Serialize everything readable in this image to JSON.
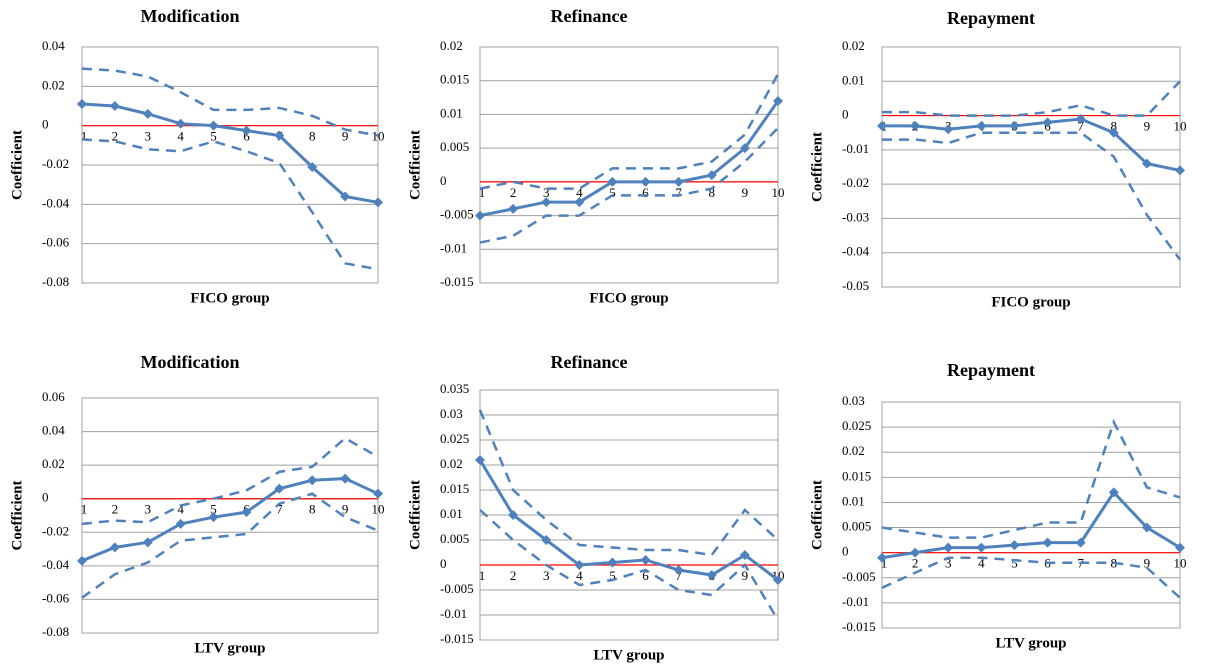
{
  "chart_data": [
    {
      "type": "line",
      "title": "Modification",
      "x_label": "FICO group",
      "y_label": "Coefficient",
      "categories": [
        1,
        2,
        3,
        4,
        5,
        6,
        7,
        8,
        9,
        10
      ],
      "ylim": [
        -0.08,
        0.04
      ],
      "yticks": [
        -0.08,
        -0.06,
        -0.04,
        -0.02,
        0,
        0.02,
        0.04
      ],
      "grid": true,
      "zero_line_color": "#ff0000",
      "series": [
        {
          "color": "#4f81bd",
          "marker": "diamond",
          "dash": false,
          "values": [
            0.011,
            0.01,
            0.006,
            0.001,
            0,
            -0.0025,
            -0.005,
            -0.021,
            -0.036,
            -0.039
          ]
        },
        {
          "color": "#4f81bd",
          "marker": "none",
          "dash": true,
          "values": [
            0.029,
            0.028,
            0.025,
            0.017,
            0.008,
            0.008,
            0.009,
            0.005,
            -0.002,
            -0.005
          ]
        },
        {
          "color": "#4f81bd",
          "marker": "none",
          "dash": true,
          "values": [
            -0.007,
            -0.008,
            -0.012,
            -0.013,
            -0.008,
            -0.013,
            -0.019,
            -0.044,
            -0.07,
            -0.073
          ]
        }
      ]
    },
    {
      "type": "line",
      "title": "Refinance",
      "x_label": "FICO group",
      "y_label": "Coefficient",
      "categories": [
        1,
        2,
        3,
        4,
        5,
        6,
        7,
        8,
        9,
        10
      ],
      "ylim": [
        -0.015,
        0.02
      ],
      "yticks": [
        -0.015,
        -0.01,
        -0.005,
        0,
        0.005,
        0.01,
        0.015,
        0.02
      ],
      "grid": true,
      "zero_line_color": "#ff0000",
      "series": [
        {
          "color": "#4f81bd",
          "marker": "diamond",
          "dash": false,
          "values": [
            -0.005,
            -0.004,
            -0.003,
            -0.003,
            0,
            0,
            0,
            0.001,
            0.005,
            0.012
          ]
        },
        {
          "color": "#4f81bd",
          "marker": "none",
          "dash": true,
          "values": [
            -0.001,
            0,
            -0.001,
            -0.001,
            0.002,
            0.002,
            0.002,
            0.003,
            0.007,
            0.016
          ]
        },
        {
          "color": "#4f81bd",
          "marker": "none",
          "dash": true,
          "values": [
            -0.009,
            -0.008,
            -0.005,
            -0.005,
            -0.002,
            -0.002,
            -0.002,
            -0.001,
            0.003,
            0.008
          ]
        }
      ]
    },
    {
      "type": "line",
      "title": "Repayment",
      "x_label": "FICO group",
      "y_label": "Coefficient",
      "categories": [
        1,
        2,
        3,
        4,
        5,
        6,
        7,
        8,
        9,
        10
      ],
      "ylim": [
        -0.05,
        0.02
      ],
      "yticks": [
        -0.05,
        -0.04,
        -0.03,
        -0.02,
        -0.01,
        0,
        0.01,
        0.02
      ],
      "grid": true,
      "zero_line_color": "#ff0000",
      "series": [
        {
          "color": "#4f81bd",
          "marker": "diamond",
          "dash": false,
          "values": [
            -0.003,
            -0.003,
            -0.004,
            -0.003,
            -0.003,
            -0.002,
            -0.001,
            -0.005,
            -0.014,
            -0.016
          ]
        },
        {
          "color": "#4f81bd",
          "marker": "none",
          "dash": true,
          "values": [
            0.001,
            0.001,
            0,
            0,
            0,
            0.001,
            0.003,
            0,
            0,
            0.01
          ]
        },
        {
          "color": "#4f81bd",
          "marker": "none",
          "dash": true,
          "values": [
            -0.007,
            -0.007,
            -0.008,
            -0.005,
            -0.005,
            -0.005,
            -0.005,
            -0.012,
            -0.029,
            -0.042
          ]
        }
      ]
    },
    {
      "type": "line",
      "title": "Modification",
      "x_label": "LTV group",
      "y_label": "Coefficient",
      "categories": [
        1,
        2,
        3,
        4,
        5,
        6,
        7,
        8,
        9,
        10
      ],
      "ylim": [
        -0.08,
        0.06
      ],
      "yticks": [
        -0.08,
        -0.06,
        -0.04,
        -0.02,
        0,
        0.02,
        0.04,
        0.06
      ],
      "grid": true,
      "zero_line_color": "#ff0000",
      "series": [
        {
          "color": "#4f81bd",
          "marker": "diamond",
          "dash": false,
          "values": [
            -0.037,
            -0.029,
            -0.026,
            -0.015,
            -0.011,
            -0.008,
            0.006,
            0.011,
            0.012,
            0.003
          ]
        },
        {
          "color": "#4f81bd",
          "marker": "none",
          "dash": true,
          "values": [
            -0.015,
            -0.013,
            -0.014,
            -0.004,
            0,
            0.005,
            0.016,
            0.019,
            0.036,
            0.025
          ]
        },
        {
          "color": "#4f81bd",
          "marker": "none",
          "dash": true,
          "values": [
            -0.059,
            -0.045,
            -0.038,
            -0.025,
            -0.023,
            -0.021,
            -0.003,
            0.003,
            -0.011,
            -0.019
          ]
        }
      ]
    },
    {
      "type": "line",
      "title": "Refinance",
      "x_label": "LTV group",
      "y_label": "Coefficient",
      "categories": [
        1,
        2,
        3,
        4,
        5,
        6,
        7,
        8,
        9,
        10
      ],
      "ylim": [
        -0.015,
        0.035
      ],
      "yticks": [
        -0.015,
        -0.01,
        -0.005,
        0,
        0.005,
        0.01,
        0.015,
        0.02,
        0.025,
        0.03,
        0.035
      ],
      "grid": true,
      "zero_line_color": "#ff0000",
      "series": [
        {
          "color": "#4f81bd",
          "marker": "diamond",
          "dash": false,
          "values": [
            0.021,
            0.01,
            0.005,
            0,
            0.0005,
            0.001,
            -0.001,
            -0.002,
            0.002,
            -0.003
          ]
        },
        {
          "color": "#4f81bd",
          "marker": "none",
          "dash": true,
          "values": [
            0.031,
            0.015,
            0.009,
            0.004,
            0.0035,
            0.003,
            0.003,
            0.002,
            0.011,
            0.005
          ]
        },
        {
          "color": "#4f81bd",
          "marker": "none",
          "dash": true,
          "values": [
            0.011,
            0.005,
            0,
            -0.004,
            -0.003,
            -0.001,
            -0.005,
            -0.006,
            0,
            -0.011
          ]
        }
      ]
    },
    {
      "type": "line",
      "title": "Repayment",
      "x_label": "LTV group",
      "y_label": "Coefficient",
      "categories": [
        1,
        2,
        3,
        4,
        5,
        6,
        7,
        8,
        9,
        10
      ],
      "ylim": [
        -0.015,
        0.03
      ],
      "yticks": [
        -0.015,
        -0.01,
        -0.005,
        0,
        0.005,
        0.01,
        0.015,
        0.02,
        0.025,
        0.03
      ],
      "grid": true,
      "zero_line_color": "#ff0000",
      "series": [
        {
          "color": "#4f81bd",
          "marker": "diamond",
          "dash": false,
          "values": [
            -0.001,
            0,
            0.001,
            0.001,
            0.0015,
            0.002,
            0.002,
            0.012,
            0.005,
            0.001
          ]
        },
        {
          "color": "#4f81bd",
          "marker": "none",
          "dash": true,
          "values": [
            0.005,
            0.004,
            0.003,
            0.003,
            0.0045,
            0.006,
            0.006,
            0.026,
            0.013,
            0.011
          ]
        },
        {
          "color": "#4f81bd",
          "marker": "none",
          "dash": true,
          "values": [
            -0.007,
            -0.004,
            -0.001,
            -0.001,
            -0.0015,
            -0.002,
            -0.002,
            -0.002,
            -0.003,
            -0.009
          ]
        }
      ]
    }
  ]
}
